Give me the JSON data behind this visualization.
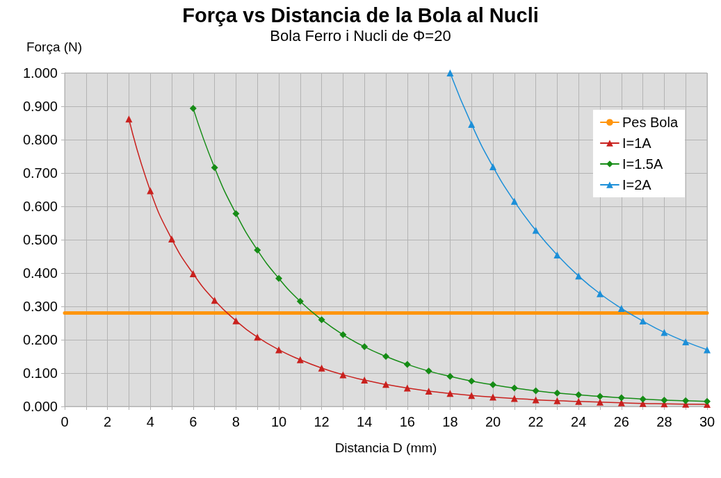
{
  "chart_data": {
    "type": "line",
    "title": "Força vs Distancia de la Bola al Nucli",
    "subtitle": "Bola Ferro i Nucli de Φ=20",
    "xlabel": "Distancia D (mm)",
    "ylabel": "Força (N)",
    "xlim": [
      0,
      30
    ],
    "xticks": [
      0,
      {
        "value": 1,
        "label": null
      },
      2,
      {
        "value": 3,
        "label": null
      },
      4,
      {
        "value": 5,
        "label": null
      },
      6,
      {
        "value": 7,
        "label": null
      },
      8,
      {
        "value": 9,
        "label": null
      },
      10,
      {
        "value": 11,
        "label": null
      },
      12,
      {
        "value": 13,
        "label": null
      },
      14,
      {
        "value": 15,
        "label": null
      },
      16,
      {
        "value": 17,
        "label": null
      },
      18,
      {
        "value": 19,
        "label": null
      },
      20,
      {
        "value": 21,
        "label": null
      },
      22,
      {
        "value": 23,
        "label": null
      },
      24,
      {
        "value": 25,
        "label": null
      },
      26,
      {
        "value": 27,
        "label": null
      },
      28,
      {
        "value": 29,
        "label": null
      },
      30
    ],
    "ylim": [
      0,
      1
    ],
    "yticks": [
      {
        "value": 0,
        "label": "0.000"
      },
      {
        "value": 0.1,
        "label": "0.100"
      },
      {
        "value": 0.2,
        "label": "0.200"
      },
      {
        "value": 0.3,
        "label": "0.300"
      },
      {
        "value": 0.4,
        "label": "0.400"
      },
      {
        "value": 0.5,
        "label": "0.500"
      },
      {
        "value": 0.6,
        "label": "0.600"
      },
      {
        "value": 0.7,
        "label": "0.700"
      },
      {
        "value": 0.8,
        "label": "0.800"
      },
      {
        "value": 0.9,
        "label": "0.900"
      },
      {
        "value": 1,
        "label": "1.000"
      }
    ],
    "grid": true,
    "legend": "top right",
    "series": [
      {
        "name": "Pes Bola",
        "color": "#ff950e",
        "marker": "none",
        "x": [
          0,
          30
        ],
        "values": [
          0.28,
          0.28
        ]
      },
      {
        "name": "I=1A",
        "color": "#c9211e",
        "marker": "triangle",
        "x": [
          3,
          4,
          5,
          6,
          7,
          8,
          9,
          10,
          11,
          12,
          13,
          14,
          15,
          16,
          17,
          18,
          19,
          20,
          21,
          22,
          23,
          24,
          25,
          26,
          27,
          28,
          29,
          30
        ],
        "values": [
          0.862,
          0.647,
          0.502,
          0.398,
          0.318,
          0.257,
          0.208,
          0.17,
          0.14,
          0.115,
          0.095,
          0.079,
          0.066,
          0.055,
          0.046,
          0.039,
          0.033,
          0.028,
          0.024,
          0.02,
          0.017,
          0.015,
          0.013,
          0.011,
          0.009,
          0.008,
          0.007,
          0.006
        ]
      },
      {
        "name": "I=1.5A",
        "color": "#168c16",
        "marker": "diamond",
        "x": [
          6,
          7,
          8,
          9,
          10,
          11,
          12,
          13,
          14,
          15,
          16,
          17,
          18,
          19,
          20,
          21,
          22,
          23,
          24,
          25,
          26,
          27,
          28,
          29,
          30
        ],
        "values": [
          0.894,
          0.716,
          0.578,
          0.469,
          0.384,
          0.315,
          0.26,
          0.215,
          0.179,
          0.15,
          0.126,
          0.106,
          0.09,
          0.076,
          0.065,
          0.055,
          0.047,
          0.04,
          0.035,
          0.03,
          0.026,
          0.022,
          0.019,
          0.017,
          0.015
        ]
      },
      {
        "name": "I=2A",
        "color": "#1c8fd8",
        "marker": "triangle",
        "x": [
          18,
          19,
          20,
          21,
          22,
          23,
          24,
          25,
          26,
          27,
          28,
          29,
          30
        ],
        "values": [
          1.0,
          0.846,
          0.719,
          0.615,
          0.528,
          0.454,
          0.391,
          0.338,
          0.294,
          0.256,
          0.222,
          0.194,
          0.17
        ]
      }
    ]
  }
}
